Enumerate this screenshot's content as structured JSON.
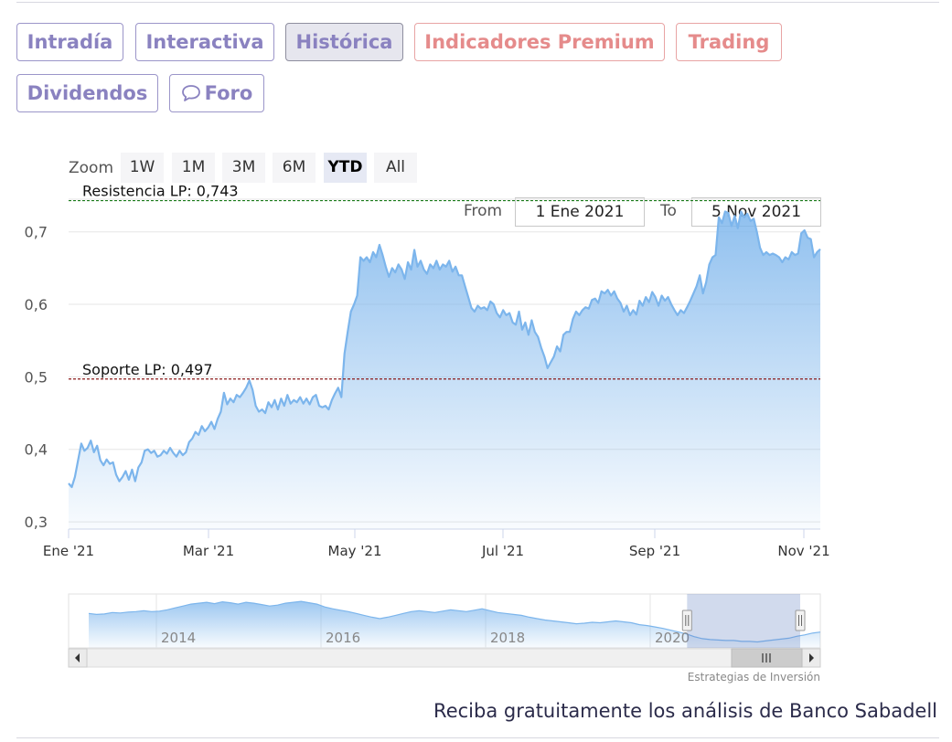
{
  "tabs": [
    {
      "label": "Intradía",
      "style": "normal"
    },
    {
      "label": "Interactiva",
      "style": "normal"
    },
    {
      "label": "Histórica",
      "style": "active"
    },
    {
      "label": "Indicadores Premium",
      "style": "premium"
    },
    {
      "label": "Trading",
      "style": "premium"
    },
    {
      "label": "Dividendos",
      "style": "normal"
    },
    {
      "label": "Foro",
      "style": "normal",
      "icon": "chat-bubble-icon"
    }
  ],
  "zoom": {
    "label": "Zoom",
    "buttons": [
      "1W",
      "1M",
      "3M",
      "6M",
      "YTD",
      "All"
    ],
    "active": "YTD"
  },
  "range": {
    "from_label": "From",
    "from_value": "1 Ene 2021",
    "to_label": "To",
    "to_value": "5 Nov 2021"
  },
  "chart_data": {
    "type": "area",
    "title": "",
    "xlabel": "",
    "ylabel": "",
    "x_ticks": [
      "Ene '21",
      "Mar '21",
      "May '21",
      "Jul '21",
      "Sep '21",
      "Nov '21"
    ],
    "y_ticks": [
      "0,3",
      "0,4",
      "0,5",
      "0,6",
      "0,7"
    ],
    "ylim": [
      0.29,
      0.745
    ],
    "grid": true,
    "series": [
      {
        "values": [
          0.353,
          0.348,
          0.362,
          0.385,
          0.408,
          0.398,
          0.402,
          0.412,
          0.396,
          0.405,
          0.385,
          0.378,
          0.386,
          0.38,
          0.382,
          0.365,
          0.356,
          0.362,
          0.37,
          0.358,
          0.372,
          0.356,
          0.375,
          0.382,
          0.398,
          0.4,
          0.395,
          0.398,
          0.39,
          0.392,
          0.398,
          0.394,
          0.402,
          0.395,
          0.39,
          0.398,
          0.392,
          0.396,
          0.41,
          0.415,
          0.424,
          0.42,
          0.432,
          0.425,
          0.43,
          0.438,
          0.428,
          0.442,
          0.452,
          0.478,
          0.462,
          0.47,
          0.465,
          0.475,
          0.472,
          0.478,
          0.485,
          0.495,
          0.482,
          0.46,
          0.452,
          0.455,
          0.45,
          0.465,
          0.458,
          0.468,
          0.455,
          0.47,
          0.46,
          0.475,
          0.463,
          0.468,
          0.465,
          0.472,
          0.463,
          0.47,
          0.462,
          0.472,
          0.475,
          0.46,
          0.458,
          0.46,
          0.455,
          0.468,
          0.477,
          0.485,
          0.472,
          0.532,
          0.562,
          0.59,
          0.6,
          0.612,
          0.665,
          0.66,
          0.665,
          0.658,
          0.672,
          0.665,
          0.682,
          0.668,
          0.652,
          0.638,
          0.65,
          0.644,
          0.655,
          0.648,
          0.635,
          0.658,
          0.648,
          0.675,
          0.652,
          0.66,
          0.648,
          0.642,
          0.655,
          0.65,
          0.66,
          0.648,
          0.655,
          0.652,
          0.66,
          0.645,
          0.652,
          0.64,
          0.64,
          0.625,
          0.61,
          0.595,
          0.59,
          0.598,
          0.594,
          0.596,
          0.592,
          0.604,
          0.6,
          0.588,
          0.582,
          0.592,
          0.585,
          0.588,
          0.575,
          0.572,
          0.59,
          0.565,
          0.575,
          0.558,
          0.578,
          0.562,
          0.555,
          0.54,
          0.528,
          0.512,
          0.52,
          0.528,
          0.542,
          0.535,
          0.558,
          0.562,
          0.562,
          0.58,
          0.59,
          0.585,
          0.592,
          0.596,
          0.594,
          0.606,
          0.608,
          0.602,
          0.618,
          0.615,
          0.62,
          0.612,
          0.618,
          0.608,
          0.602,
          0.59,
          0.598,
          0.585,
          0.592,
          0.586,
          0.605,
          0.598,
          0.61,
          0.603,
          0.617,
          0.61,
          0.598,
          0.612,
          0.605,
          0.61,
          0.6,
          0.592,
          0.585,
          0.592,
          0.588,
          0.596,
          0.605,
          0.615,
          0.625,
          0.64,
          0.615,
          0.63,
          0.655,
          0.665,
          0.668,
          0.72,
          0.712,
          0.728,
          0.726,
          0.708,
          0.722,
          0.705,
          0.728,
          0.72,
          0.725,
          0.715,
          0.718,
          0.7,
          0.678,
          0.668,
          0.672,
          0.668,
          0.67,
          0.668,
          0.665,
          0.658,
          0.665,
          0.662,
          0.672,
          0.668,
          0.67,
          0.698,
          0.702,
          0.692,
          0.69,
          0.665,
          0.672,
          0.676
        ]
      }
    ],
    "reference_lines": [
      {
        "label": "Resistencia LP: 0,743",
        "value": 0.743,
        "color": "#1a7a1a"
      },
      {
        "label": "Soporte LP: 0,497",
        "value": 0.497,
        "color": "#8b1a1a"
      }
    ],
    "colors": {
      "line": "#7cb5ec",
      "grid": "#e6e6e6",
      "axis": "#ccd6eb"
    }
  },
  "navigator": {
    "labels": [
      "2014",
      "2016",
      "2018",
      "2020"
    ],
    "values": [
      0.66,
      0.64,
      0.65,
      0.68,
      0.67,
      0.69,
      0.7,
      0.72,
      0.7,
      0.71,
      0.74,
      0.78,
      0.82,
      0.86,
      0.88,
      0.9,
      0.87,
      0.91,
      0.89,
      0.86,
      0.9,
      0.88,
      0.85,
      0.82,
      0.84,
      0.88,
      0.9,
      0.92,
      0.89,
      0.86,
      0.8,
      0.76,
      0.73,
      0.7,
      0.66,
      0.62,
      0.58,
      0.55,
      0.58,
      0.62,
      0.66,
      0.7,
      0.72,
      0.7,
      0.68,
      0.71,
      0.74,
      0.72,
      0.7,
      0.73,
      0.76,
      0.72,
      0.68,
      0.66,
      0.64,
      0.62,
      0.58,
      0.55,
      0.52,
      0.5,
      0.48,
      0.46,
      0.44,
      0.45,
      0.47,
      0.46,
      0.48,
      0.5,
      0.48,
      0.46,
      0.42,
      0.4,
      0.37,
      0.34,
      0.3,
      0.26,
      0.22,
      0.16,
      0.12,
      0.1,
      0.09,
      0.08,
      0.08,
      0.06,
      0.06,
      0.05,
      0.07,
      0.09,
      0.11,
      0.13,
      0.17,
      0.2,
      0.24,
      0.26
    ],
    "selected_range": [
      0.914,
      1.0
    ]
  },
  "credit": "Estrategias de Inversión",
  "cta": "Reciba gratuitamente los análisis de Banco Sabadell"
}
